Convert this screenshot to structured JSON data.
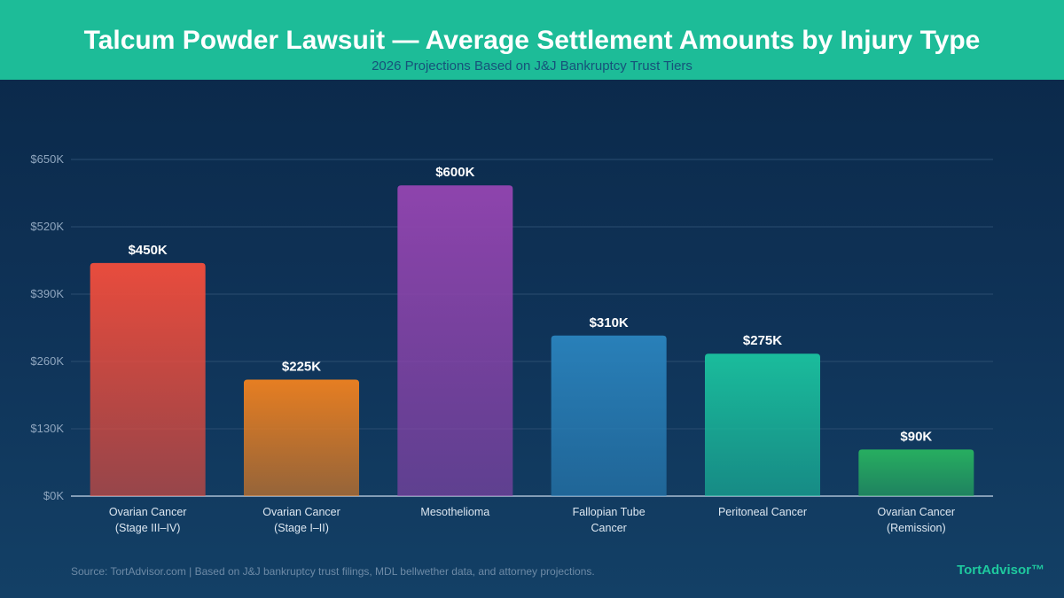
{
  "header": {
    "title": "Talcum Powder Lawsuit — Average Settlement Amounts by Injury Type",
    "subtitle": "2026 Projections Based on J&J Bankruptcy Trust Tiers"
  },
  "footer": {
    "source": "Source: TortAdvisor.com | Based on J&J bankruptcy trust filings, MDL bellwether data, and attorney projections.",
    "brand": "TortAdvisor™"
  },
  "chart_data": {
    "type": "bar",
    "title": "Talcum Powder Lawsuit — Average Settlement Amounts by Injury Type",
    "subtitle": "2026 Projections Based on J&J Bankruptcy Trust Tiers",
    "xlabel": "",
    "ylabel": "",
    "ylim": [
      0,
      650000
    ],
    "yticks": [
      0,
      130000,
      260000,
      390000,
      520000,
      650000
    ],
    "ytick_labels": [
      "$0K",
      "$130K",
      "$260K",
      "$390K",
      "$520K",
      "$650K"
    ],
    "grid": true,
    "categories": [
      [
        "Ovarian Cancer",
        "(Stage III–IV)"
      ],
      [
        "Ovarian Cancer",
        "(Stage I–II)"
      ],
      [
        "Mesothelioma"
      ],
      [
        "Fallopian Tube",
        "Cancer"
      ],
      [
        "Peritoneal Cancer"
      ],
      [
        "Ovarian Cancer",
        "(Remission)"
      ]
    ],
    "values": [
      450000,
      225000,
      600000,
      310000,
      275000,
      90000
    ],
    "value_labels": [
      "$450K",
      "$225K",
      "$600K",
      "$310K",
      "$275K",
      "$90K"
    ],
    "colors": [
      "#e84c3d",
      "#e67e22",
      "#8e44ad",
      "#2980b9",
      "#1abc9c",
      "#27ae60"
    ]
  }
}
